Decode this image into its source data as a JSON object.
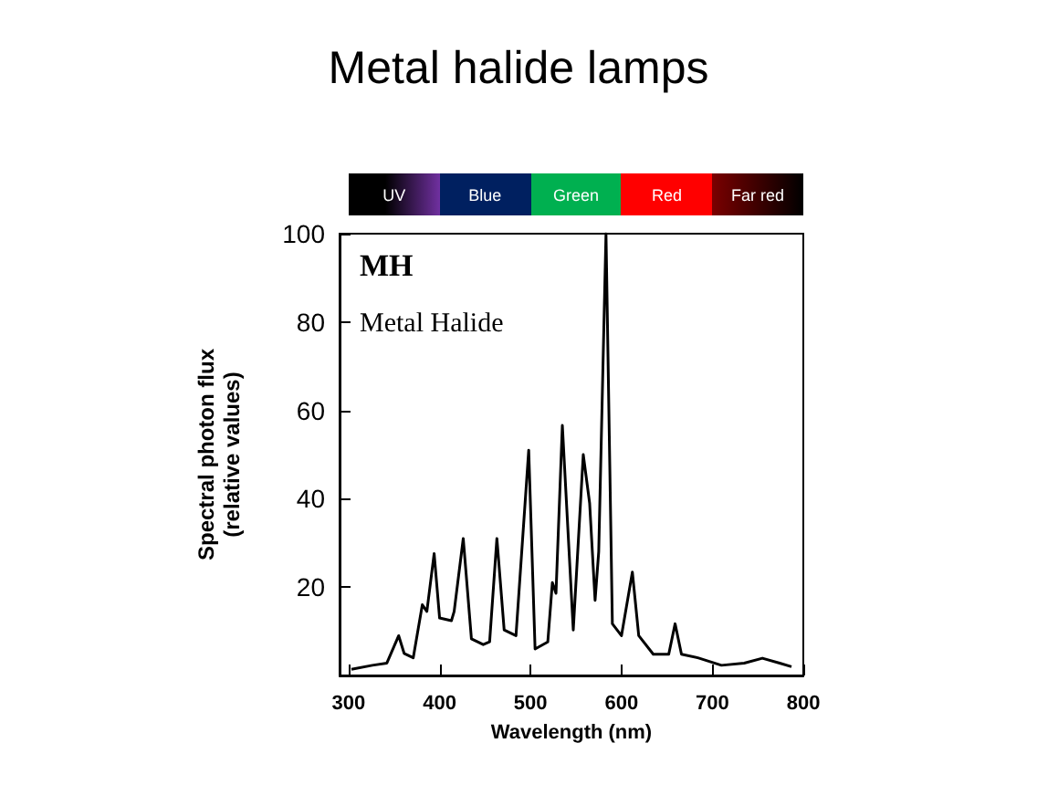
{
  "chart_data": {
    "type": "line",
    "title": "Metal halide lamps",
    "xlabel": "Wavelength (nm)",
    "ylabel": "Spectral photon flux\n(relative values)",
    "annotations": [
      "MH",
      "Metal Halide",
      "UV",
      "Blue",
      "Green",
      "Red",
      "Far red"
    ],
    "x": [
      303,
      326,
      342,
      355,
      361,
      371,
      381,
      386,
      394,
      400,
      413,
      416,
      426,
      435,
      448,
      455,
      463,
      471,
      484,
      498,
      505,
      519,
      524,
      528,
      535,
      547,
      558,
      565,
      571,
      575,
      583,
      590,
      600,
      612,
      619,
      635,
      652,
      659,
      666,
      684,
      710,
      735,
      755,
      774,
      787
    ],
    "series": [
      {
        "color": "#000000",
        "values": [
          1.4,
          2.3,
          2.8,
          9,
          5,
          4,
          16,
          14.5,
          27.6,
          13,
          12.4,
          14.5,
          31,
          8.3,
          7,
          7.6,
          31,
          10.3,
          9,
          51,
          6,
          7.6,
          21,
          18.6,
          56.6,
          10.3,
          50,
          39,
          17,
          28,
          100,
          11.7,
          9,
          23.4,
          9,
          4.8,
          4.8,
          11.7,
          4.8,
          4,
          2.3,
          2.8,
          3.9,
          2.8,
          2
        ]
      }
    ],
    "xlim": [
      290,
      800
    ],
    "xticks": [
      300,
      400,
      500,
      600,
      700,
      800
    ],
    "ylim": [
      0,
      100
    ],
    "yticks": [
      20,
      40,
      60,
      80,
      100
    ],
    "grid": false,
    "marker": "none",
    "line_style": "solid"
  }
}
